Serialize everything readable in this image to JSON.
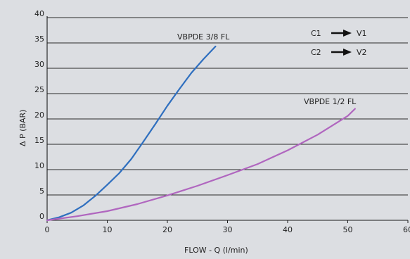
{
  "chart_data": {
    "type": "line",
    "xlabel": "FLOW - Q (l/min)",
    "ylabel": "Δ P (BAR)",
    "xlim": [
      0,
      60
    ],
    "ylim": [
      0,
      40
    ],
    "x_ticks": [
      0,
      10,
      20,
      30,
      40,
      50,
      60
    ],
    "y_ticks": [
      0,
      5,
      10,
      15,
      20,
      25,
      30,
      35,
      40
    ],
    "grid": "horizontal",
    "legend": [
      {
        "from": "C1",
        "to": "V1"
      },
      {
        "from": "C2",
        "to": "V2"
      }
    ],
    "series": [
      {
        "name": "VBPDE 3/8 FL",
        "color": "#2f6fbf",
        "points": [
          [
            0,
            0
          ],
          [
            2,
            0.6
          ],
          [
            4,
            1.5
          ],
          [
            6,
            2.9
          ],
          [
            8,
            4.8
          ],
          [
            10,
            7.0
          ],
          [
            12,
            9.3
          ],
          [
            14,
            12.1
          ],
          [
            16,
            15.5
          ],
          [
            18,
            19.0
          ],
          [
            20,
            22.6
          ],
          [
            22,
            25.9
          ],
          [
            24,
            29.1
          ],
          [
            26,
            31.8
          ],
          [
            28,
            34.3
          ]
        ]
      },
      {
        "name": "VBPDE 1/2 FL",
        "color": "#b066bf",
        "points": [
          [
            0,
            0
          ],
          [
            5,
            0.8
          ],
          [
            10,
            1.8
          ],
          [
            15,
            3.2
          ],
          [
            20,
            4.9
          ],
          [
            25,
            6.8
          ],
          [
            30,
            8.9
          ],
          [
            35,
            11.1
          ],
          [
            40,
            13.8
          ],
          [
            45,
            16.9
          ],
          [
            50,
            20.6
          ],
          [
            51.2,
            22.0
          ]
        ]
      }
    ]
  }
}
